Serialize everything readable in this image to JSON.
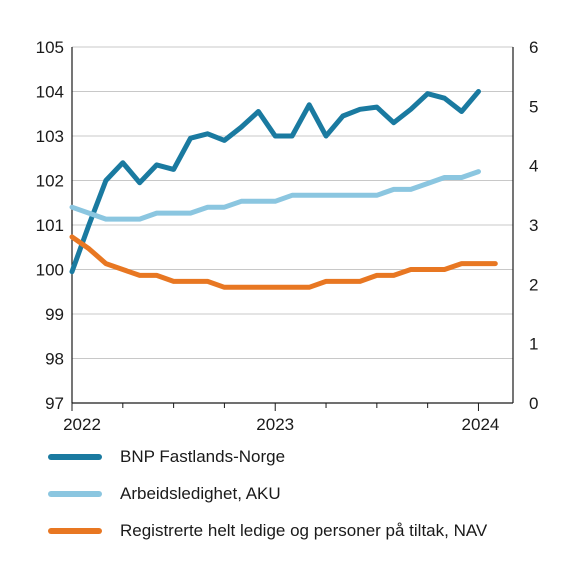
{
  "chart_data": {
    "type": "line",
    "title": "",
    "xlabel": "",
    "ylabel_left": "",
    "ylabel_right": "",
    "x_tick_labels": [
      "2022",
      "2023",
      "2024"
    ],
    "x_ticks": [
      2022,
      2023,
      2024
    ],
    "xlim": [
      2022,
      2024.17
    ],
    "ylim_left": [
      97,
      105
    ],
    "yticks_left": [
      97,
      98,
      99,
      100,
      101,
      102,
      103,
      104,
      105
    ],
    "ylim_right": [
      0,
      6
    ],
    "yticks_right": [
      0,
      1,
      2,
      3,
      4,
      5,
      6
    ],
    "grid": true,
    "legend_position": "bottom",
    "series": [
      {
        "name": "BNP Fastlands-Norge",
        "axis": "left",
        "color": "#1a7aa0",
        "x": [
          2022.0,
          2022.083,
          2022.167,
          2022.25,
          2022.333,
          2022.417,
          2022.5,
          2022.583,
          2022.667,
          2022.75,
          2022.833,
          2022.917,
          2023.0,
          2023.083,
          2023.167,
          2023.25,
          2023.333,
          2023.417,
          2023.5,
          2023.583,
          2023.667,
          2023.75,
          2023.833,
          2023.917,
          2024.0,
          2024.083
        ],
        "y": [
          99.95,
          101.0,
          102.0,
          102.4,
          101.95,
          102.35,
          102.25,
          102.95,
          103.05,
          102.9,
          103.2,
          103.55,
          103.0,
          103.0,
          103.7,
          103.0,
          103.45,
          103.6,
          103.65,
          103.3,
          103.6,
          103.95,
          103.85,
          103.55,
          104.0,
          null
        ]
      },
      {
        "name": "Arbeidsledighet, AKU",
        "axis": "right",
        "color": "#8bc6e0",
        "x": [
          2022.0,
          2022.083,
          2022.167,
          2022.25,
          2022.333,
          2022.417,
          2022.5,
          2022.583,
          2022.667,
          2022.75,
          2022.833,
          2022.917,
          2023.0,
          2023.083,
          2023.167,
          2023.25,
          2023.333,
          2023.417,
          2023.5,
          2023.583,
          2023.667,
          2023.75,
          2023.833,
          2023.917,
          2024.0
        ],
        "y": [
          3.3,
          3.2,
          3.1,
          3.1,
          3.1,
          3.2,
          3.2,
          3.2,
          3.3,
          3.3,
          3.4,
          3.4,
          3.4,
          3.5,
          3.5,
          3.5,
          3.5,
          3.5,
          3.5,
          3.6,
          3.6,
          3.7,
          3.8,
          3.8,
          3.9
        ]
      },
      {
        "name": "Registrerte helt ledige og personer på tiltak, NAV",
        "axis": "right",
        "color": "#e87722",
        "x": [
          2022.0,
          2022.083,
          2022.167,
          2022.25,
          2022.333,
          2022.417,
          2022.5,
          2022.583,
          2022.667,
          2022.75,
          2022.833,
          2022.917,
          2023.0,
          2023.083,
          2023.167,
          2023.25,
          2023.333,
          2023.417,
          2023.5,
          2023.583,
          2023.667,
          2023.75,
          2023.833,
          2023.917,
          2024.0,
          2024.083
        ],
        "y": [
          2.8,
          2.6,
          2.35,
          2.25,
          2.15,
          2.15,
          2.05,
          2.05,
          2.05,
          1.95,
          1.95,
          1.95,
          1.95,
          1.95,
          1.95,
          2.05,
          2.05,
          2.05,
          2.15,
          2.15,
          2.25,
          2.25,
          2.25,
          2.35,
          2.35,
          2.35
        ]
      }
    ]
  }
}
